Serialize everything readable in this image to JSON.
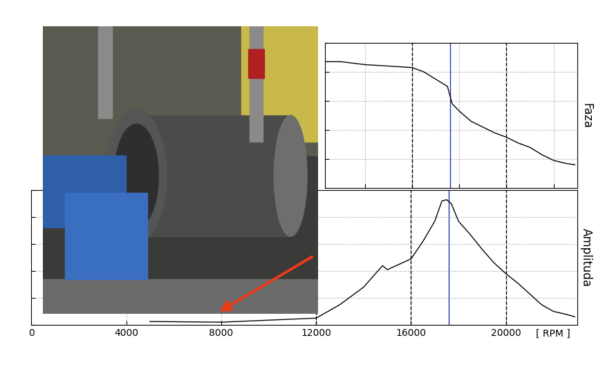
{
  "chart_data": [
    {
      "type": "line",
      "ylabel": "Faza",
      "x": [
        12300,
        13000,
        14000,
        15000,
        16000,
        16500,
        17000,
        17500,
        17700,
        18000,
        18500,
        19000,
        19500,
        20000,
        20500,
        21000,
        21500,
        22000,
        22500,
        22900
      ],
      "series": [
        {
          "name": "Faza",
          "color": "#000000",
          "values": [
            8.7,
            8.7,
            8.5,
            8.4,
            8.3,
            8.0,
            7.5,
            7.0,
            5.8,
            5.3,
            4.6,
            4.2,
            3.8,
            3.5,
            3.1,
            2.8,
            2.3,
            1.9,
            1.7,
            1.6
          ]
        }
      ],
      "xlim": [
        12300,
        23000
      ],
      "xticks": [
        14000,
        16000,
        18000,
        20000,
        22000
      ],
      "ylim": [
        0,
        10
      ],
      "yticks": [
        0,
        2,
        4,
        6,
        8,
        10
      ],
      "grid": true,
      "tick_labels": false,
      "vlines": [
        {
          "x": 16000,
          "color": "#000000",
          "line_style": "dashed"
        },
        {
          "x": 20000,
          "color": "#000000",
          "line_style": "dashed"
        },
        {
          "x": 17600,
          "color": "#2233aa",
          "line_style": "solid"
        }
      ]
    },
    {
      "type": "line",
      "ylabel": "Amplituda",
      "xlabel": "[ RPM ]",
      "x": [
        5000,
        8000,
        10000,
        12000,
        12300,
        13000,
        14000,
        14800,
        15000,
        16000,
        16500,
        17000,
        17300,
        17500,
        17700,
        18000,
        18500,
        19000,
        19500,
        20000,
        20500,
        21000,
        21500,
        22000,
        22500,
        22900
      ],
      "series": [
        {
          "name": "Amplituda",
          "color": "#000000",
          "values": [
            0.25,
            0.2,
            0.35,
            0.5,
            0.8,
            1.5,
            2.8,
            4.4,
            4.1,
            4.9,
            6.2,
            7.7,
            9.2,
            9.3,
            9.0,
            7.7,
            6.7,
            5.6,
            4.6,
            3.8,
            3.1,
            2.3,
            1.5,
            1.0,
            0.8,
            0.6
          ]
        }
      ],
      "xlim": [
        0,
        23000
      ],
      "xticks": [
        0,
        4000,
        8000,
        12000,
        16000,
        20000
      ],
      "ylim": [
        0,
        10
      ],
      "yticks": [
        0,
        2,
        4,
        6,
        8,
        10
      ],
      "grid": true,
      "tick_labels": "x",
      "vlines": [
        {
          "x": 12000,
          "color": "#000000",
          "line_style": "dashed"
        },
        {
          "x": 16000,
          "color": "#000000",
          "line_style": "dashed"
        },
        {
          "x": 20000,
          "color": "#000000",
          "line_style": "dashed"
        },
        {
          "x": 17600,
          "color": "#2233aa",
          "line_style": "solid"
        }
      ]
    }
  ]
}
